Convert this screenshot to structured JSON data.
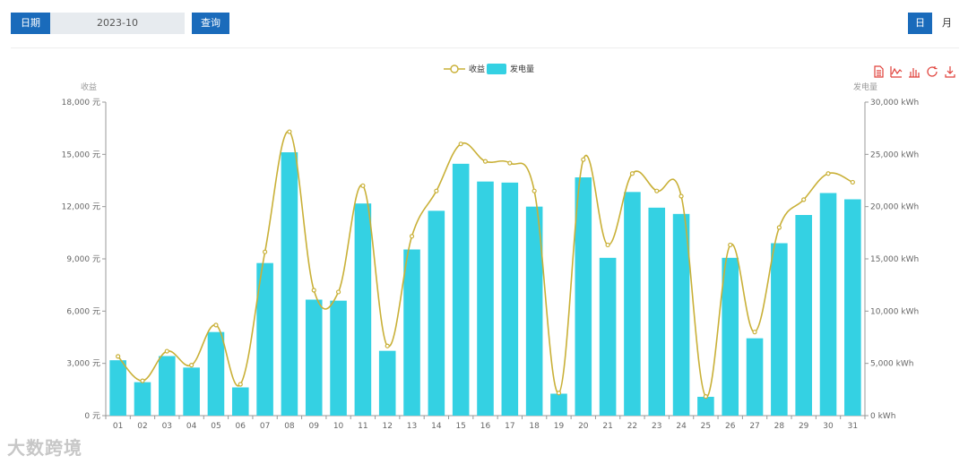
{
  "toolbar": {
    "date_label": "日期",
    "date_value": "2023-10",
    "query_label": "查询",
    "mode_day": "日",
    "mode_month": "月"
  },
  "watermark": "大数跨境",
  "chart_data": {
    "type": "bar",
    "categories": [
      "01",
      "02",
      "03",
      "04",
      "05",
      "06",
      "07",
      "08",
      "09",
      "10",
      "11",
      "12",
      "13",
      "14",
      "15",
      "16",
      "17",
      "18",
      "19",
      "20",
      "21",
      "22",
      "23",
      "24",
      "25",
      "26",
      "27",
      "28",
      "29",
      "30",
      "31"
    ],
    "series": [
      {
        "name": "收益",
        "type": "line",
        "axis": "left",
        "color": "#c9b037",
        "values": [
          3400,
          2000,
          3700,
          2900,
          5200,
          1800,
          9400,
          16300,
          7200,
          7100,
          13200,
          4000,
          10300,
          12900,
          15600,
          14600,
          14500,
          12900,
          1300,
          14700,
          9800,
          13900,
          12900,
          12600,
          1100,
          9800,
          4800,
          10800,
          12400,
          13900,
          13400
        ]
      },
      {
        "name": "发电量",
        "type": "bar",
        "axis": "right",
        "color": "#34d1e3",
        "values": [
          5300,
          3200,
          5700,
          4600,
          8000,
          2700,
          14600,
          25200,
          11100,
          11000,
          20300,
          6200,
          15900,
          19600,
          24100,
          22400,
          22300,
          20000,
          2100,
          22800,
          15100,
          21400,
          19900,
          19300,
          1800,
          15100,
          7400,
          16500,
          19200,
          21300,
          20700
        ]
      }
    ],
    "y_left": {
      "label": "收益",
      "min": 0,
      "max": 18000,
      "ticks": [
        "0 元",
        "3,000 元",
        "6,000 元",
        "9,000 元",
        "12,000 元",
        "15,000 元",
        "18,000 元"
      ]
    },
    "y_right": {
      "label": "发电量",
      "min": 0,
      "max": 30000,
      "ticks": [
        "0 kWh",
        "5,000 kWh",
        "10,000 kWh",
        "15,000 kWh",
        "20,000 kWh",
        "25,000 kWh",
        "30,000 kWh"
      ]
    },
    "legend": {
      "placement": "top-center",
      "items": [
        "收益",
        "发电量"
      ]
    },
    "grid": false,
    "axis_color": "#999999",
    "tool_color": "#e0403a",
    "tools": [
      "data-view-icon",
      "line-chart-icon",
      "bar-chart-icon",
      "restore-icon",
      "download-icon"
    ]
  }
}
